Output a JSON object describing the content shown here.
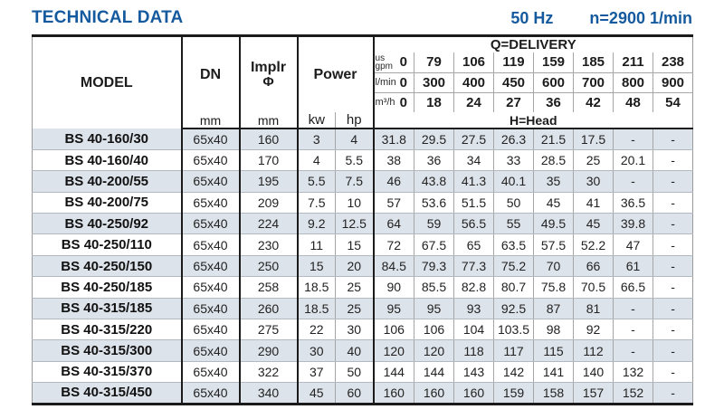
{
  "page": {
    "title": "TECHNICAL DATA",
    "frequency": "50 Hz",
    "speed": "n=2900 1/min"
  },
  "colors": {
    "accent_blue": "#155a9e",
    "row_alt": "#dde3ea"
  },
  "table": {
    "header": {
      "model": "MODEL",
      "dn": "DN",
      "implr_line1": "Implr",
      "implr_line2": "Φ",
      "power": "Power",
      "unit_mm": "mm",
      "unit_kw": "kw",
      "unit_hp": "hp",
      "delivery_title": "Q=DELIVERY",
      "head_title": "H=Head",
      "unit_us": "us",
      "unit_gpm": "gpm",
      "unit_lmin": "l/min",
      "unit_m3h": "m³/h",
      "gpm_values": [
        "0",
        "79",
        "106",
        "119",
        "159",
        "185",
        "211",
        "238"
      ],
      "lmin_values": [
        "0",
        "300",
        "400",
        "450",
        "600",
        "700",
        "800",
        "900"
      ],
      "m3h_values": [
        "0",
        "18",
        "24",
        "27",
        "36",
        "42",
        "48",
        "54"
      ]
    },
    "rows": [
      {
        "model": "BS 40-160/30",
        "dn": "65x40",
        "implr": "160",
        "kw": "3",
        "hp": "4",
        "head": [
          "31.8",
          "29.5",
          "27.5",
          "26.3",
          "21.5",
          "17.5",
          "-",
          "-"
        ]
      },
      {
        "model": "BS 40-160/40",
        "dn": "65x40",
        "implr": "170",
        "kw": "4",
        "hp": "5.5",
        "head": [
          "38",
          "36",
          "34",
          "33",
          "28.5",
          "25",
          "20.1",
          "-"
        ]
      },
      {
        "model": "BS 40-200/55",
        "dn": "65x40",
        "implr": "195",
        "kw": "5.5",
        "hp": "7.5",
        "head": [
          "46",
          "43.8",
          "41.3",
          "40.1",
          "35",
          "30",
          "-",
          "-"
        ]
      },
      {
        "model": "BS 40-200/75",
        "dn": "65x40",
        "implr": "209",
        "kw": "7.5",
        "hp": "10",
        "head": [
          "57",
          "53.6",
          "51.5",
          "50",
          "45",
          "41",
          "36.5",
          "-"
        ]
      },
      {
        "model": "BS 40-250/92",
        "dn": "65x40",
        "implr": "224",
        "kw": "9.2",
        "hp": "12.5",
        "head": [
          "64",
          "59",
          "56.5",
          "55",
          "49.5",
          "45",
          "39.8",
          "-"
        ]
      },
      {
        "model": "BS 40-250/110",
        "dn": "65x40",
        "implr": "230",
        "kw": "11",
        "hp": "15",
        "head": [
          "72",
          "67.5",
          "65",
          "63.5",
          "57.5",
          "52.2",
          "47",
          "-"
        ]
      },
      {
        "model": "BS 40-250/150",
        "dn": "65x40",
        "implr": "250",
        "kw": "15",
        "hp": "20",
        "head": [
          "84.5",
          "79.3",
          "77.3",
          "75.2",
          "70",
          "66",
          "61",
          "-"
        ]
      },
      {
        "model": "BS 40-250/185",
        "dn": "65x40",
        "implr": "258",
        "kw": "18.5",
        "hp": "25",
        "head": [
          "90",
          "85.5",
          "82.8",
          "80.7",
          "75.8",
          "70.5",
          "66.5",
          "-"
        ]
      },
      {
        "model": "BS 40-315/185",
        "dn": "65x40",
        "implr": "260",
        "kw": "18.5",
        "hp": "25",
        "head": [
          "95",
          "95",
          "93",
          "92.5",
          "87",
          "81",
          "-",
          "-"
        ]
      },
      {
        "model": "BS 40-315/220",
        "dn": "65x40",
        "implr": "275",
        "kw": "22",
        "hp": "30",
        "head": [
          "106",
          "106",
          "104",
          "103.5",
          "98",
          "92",
          "-",
          "-"
        ]
      },
      {
        "model": "BS 40-315/300",
        "dn": "65x40",
        "implr": "290",
        "kw": "30",
        "hp": "40",
        "head": [
          "120",
          "120",
          "118",
          "117",
          "115",
          "112",
          "-",
          "-"
        ]
      },
      {
        "model": "BS 40-315/370",
        "dn": "65x40",
        "implr": "322",
        "kw": "37",
        "hp": "50",
        "head": [
          "144",
          "144",
          "143",
          "142",
          "141",
          "140",
          "132",
          "-"
        ]
      },
      {
        "model": "BS 40-315/450",
        "dn": "65x40",
        "implr": "340",
        "kw": "45",
        "hp": "60",
        "head": [
          "160",
          "160",
          "160",
          "159",
          "158",
          "157",
          "152",
          "-"
        ]
      }
    ]
  }
}
